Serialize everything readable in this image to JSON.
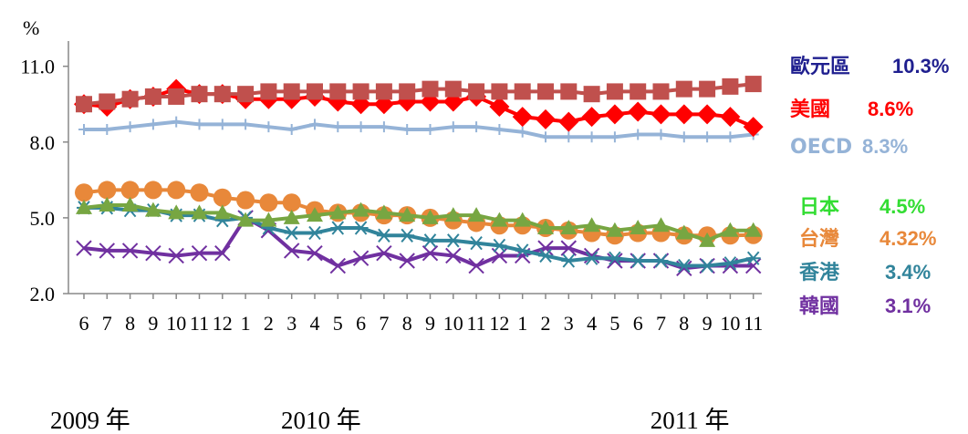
{
  "chart_data": {
    "type": "line",
    "title": "",
    "ylabel": "%",
    "ylim": [
      2.0,
      12.0
    ],
    "yticks": [
      "2.0",
      "5.0",
      "8.0",
      "11.0"
    ],
    "categories": [
      "6",
      "7",
      "8",
      "9",
      "10",
      "11",
      "12",
      "1",
      "2",
      "3",
      "4",
      "5",
      "6",
      "7",
      "8",
      "9",
      "10",
      "11",
      "12",
      "1",
      "2",
      "3",
      "4",
      "5",
      "6",
      "7",
      "8",
      "9",
      "10",
      "11"
    ],
    "year_labels": [
      {
        "label": "2009 年",
        "index": 0
      },
      {
        "label": "2010 年",
        "index": 10
      },
      {
        "label": "2011 年",
        "index": 26
      }
    ],
    "series": [
      {
        "name": "歐元區",
        "value_label": "10.3%",
        "color": "#c0504d",
        "label_color": "#1f1f8f",
        "marker": "square",
        "values": [
          9.5,
          9.6,
          9.7,
          9.8,
          9.8,
          9.9,
          9.9,
          9.9,
          10.0,
          10.0,
          10.0,
          10.0,
          10.0,
          10.0,
          10.0,
          10.1,
          10.1,
          10.0,
          10.0,
          10.0,
          10.0,
          10.0,
          9.9,
          10.0,
          10.0,
          10.0,
          10.1,
          10.1,
          10.2,
          10.3
        ]
      },
      {
        "name": "美國",
        "value_label": "8.6%",
        "color": "#ff0000",
        "label_color": "#ff0000",
        "marker": "diamond",
        "values": [
          9.5,
          9.4,
          9.7,
          9.8,
          10.1,
          9.9,
          9.9,
          9.7,
          9.7,
          9.7,
          9.8,
          9.6,
          9.5,
          9.5,
          9.6,
          9.6,
          9.6,
          9.8,
          9.4,
          9.0,
          8.9,
          8.8,
          9.0,
          9.1,
          9.2,
          9.1,
          9.1,
          9.1,
          9.0,
          8.6
        ]
      },
      {
        "name": "OECD",
        "value_label": "8.3%",
        "color": "#95b3d7",
        "label_color": "#95b3d7",
        "marker": "plus",
        "values": [
          8.5,
          8.5,
          8.6,
          8.7,
          8.8,
          8.7,
          8.7,
          8.7,
          8.6,
          8.5,
          8.7,
          8.6,
          8.6,
          8.6,
          8.5,
          8.5,
          8.6,
          8.6,
          8.5,
          8.4,
          8.2,
          8.2,
          8.2,
          8.2,
          8.3,
          8.3,
          8.2,
          8.2,
          8.2,
          8.3
        ]
      },
      {
        "name": "日本",
        "value_label": "4.5%",
        "color": "#77a642",
        "label_color": "#33dd33",
        "marker": "triangle",
        "values": [
          5.4,
          5.5,
          5.5,
          5.3,
          5.2,
          5.2,
          5.2,
          4.9,
          4.9,
          5.0,
          5.1,
          5.2,
          5.3,
          5.2,
          5.1,
          5.0,
          5.1,
          5.1,
          4.9,
          4.9,
          4.6,
          4.6,
          4.7,
          4.5,
          4.6,
          4.7,
          4.4,
          4.1,
          4.5,
          4.5
        ]
      },
      {
        "name": "台灣",
        "value_label": "4.32%",
        "color": "#e8883a",
        "label_color": "#e8883a",
        "marker": "circle",
        "values": [
          6.0,
          6.1,
          6.1,
          6.1,
          6.1,
          6.0,
          5.8,
          5.7,
          5.6,
          5.6,
          5.3,
          5.2,
          5.2,
          5.1,
          5.1,
          5.0,
          4.9,
          4.8,
          4.7,
          4.7,
          4.6,
          4.5,
          4.4,
          4.3,
          4.4,
          4.4,
          4.3,
          4.3,
          4.3,
          4.32
        ]
      },
      {
        "name": "香港",
        "value_label": "3.4%",
        "color": "#31849b",
        "label_color": "#31849b",
        "marker": "star",
        "values": [
          5.4,
          5.4,
          5.3,
          5.3,
          5.1,
          5.1,
          4.9,
          5.0,
          4.6,
          4.4,
          4.4,
          4.6,
          4.6,
          4.3,
          4.3,
          4.1,
          4.1,
          4.0,
          3.9,
          3.7,
          3.5,
          3.3,
          3.4,
          3.4,
          3.3,
          3.3,
          3.1,
          3.1,
          3.2,
          3.4
        ]
      },
      {
        "name": "韓國",
        "value_label": "3.1%",
        "color": "#7030a0",
        "label_color": "#7030a0",
        "marker": "x",
        "values": [
          3.8,
          3.7,
          3.7,
          3.6,
          3.5,
          3.6,
          3.6,
          5.0,
          4.5,
          3.7,
          3.6,
          3.1,
          3.4,
          3.6,
          3.3,
          3.6,
          3.5,
          3.1,
          3.5,
          3.5,
          3.8,
          3.8,
          3.5,
          3.3,
          3.3,
          3.3,
          3.0,
          3.1,
          3.1,
          3.1
        ]
      }
    ]
  }
}
